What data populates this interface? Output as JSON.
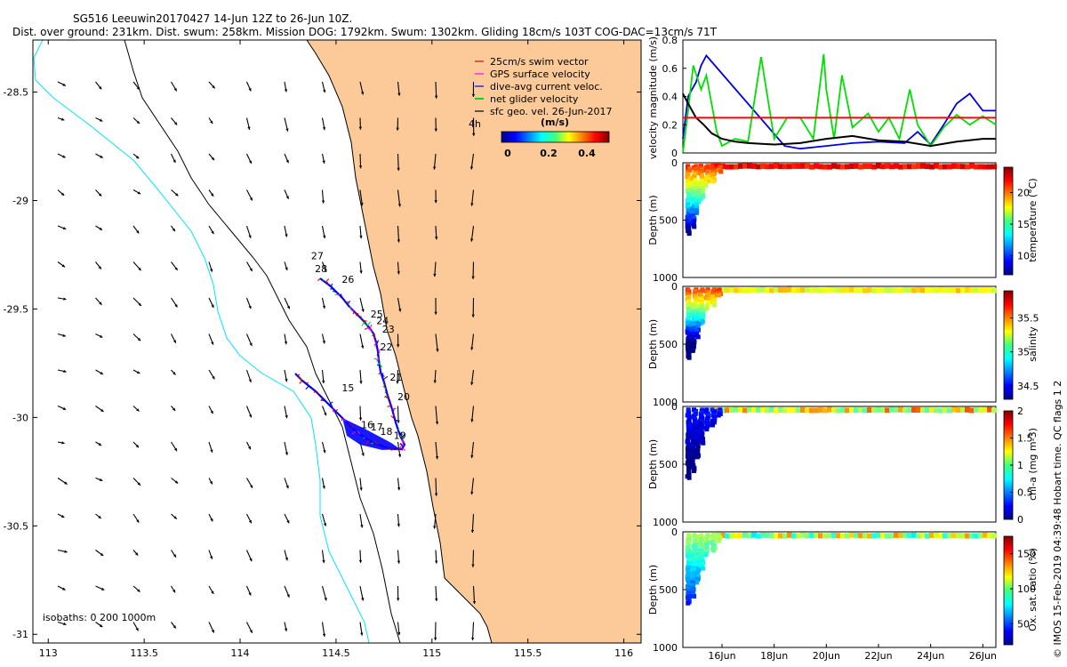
{
  "header": {
    "title_line1": "SG516 Leeuwin20170427 14-Jun 12Z to 26-Jun 10Z.",
    "title_line2": "Dist. over ground: 231km. Dist. swum: 258km. Mission DOG: 1792km. Swum: 1302km. Gliding 18cm/s 103T COG-DAC=13cm/s 71T"
  },
  "credit": "© IMOS 15-Feb-2019 04:39:48 Hobart time. QC flags 1  2",
  "colors": {
    "land": "#fcca98",
    "isobath_200": "#00e5ff",
    "isobath_other": "#000000",
    "swim": "#e00000",
    "gps": "#ff00ff",
    "dac": "#0000ff",
    "net": "#00dd00",
    "geo": "#000000",
    "speed_line": "#0000e0",
    "temp_line": "#00d000",
    "line_black": "#000000",
    "line_red": "#ff0000"
  },
  "chart_data": [
    {
      "type": "scatter",
      "name": "map",
      "xticks": [
        "113",
        "113.5",
        "114",
        "114.5",
        "115",
        "115.5",
        "116"
      ],
      "yticks": [
        "-28.5",
        "-29",
        "-29.5",
        "-30",
        "-30.5",
        "-31"
      ],
      "xlim": [
        112.92,
        116.09
      ],
      "ylim": [
        -31.04,
        -28.26
      ],
      "legend": {
        "entries": [
          "25cm/s swim vector",
          "GPS surface velocity",
          "dive-avg current veloc.",
          "net glider velocity",
          "sfc geo. vel. 26-Jun-2017"
        ],
        "time_label": "4h",
        "colorbar_title": "(m/s)",
        "colorbar_ticks": [
          "0",
          "0.2",
          "0.4"
        ]
      },
      "isobath_label": "isobaths: 0   200  1000m",
      "track_labels": [
        {
          "t": "27",
          "lon": 114.37,
          "lat": -29.27
        },
        {
          "t": "28",
          "lon": 114.39,
          "lat": -29.33
        },
        {
          "t": "26",
          "lon": 114.53,
          "lat": -29.38
        },
        {
          "t": "25",
          "lon": 114.68,
          "lat": -29.54
        },
        {
          "t": "24",
          "lon": 114.71,
          "lat": -29.57
        },
        {
          "t": "23",
          "lon": 114.74,
          "lat": -29.61
        },
        {
          "t": "22",
          "lon": 114.73,
          "lat": -29.69
        },
        {
          "t": "21",
          "lon": 114.78,
          "lat": -29.83
        },
        {
          "t": "20",
          "lon": 114.82,
          "lat": -29.92
        },
        {
          "t": "15",
          "lon": 114.53,
          "lat": -29.88
        },
        {
          "t": "16",
          "lon": 114.63,
          "lat": -30.05
        },
        {
          "t": "17",
          "lon": 114.68,
          "lat": -30.06
        },
        {
          "t": "18",
          "lon": 114.73,
          "lat": -30.08
        },
        {
          "t": "19",
          "lon": 114.8,
          "lat": -30.1
        }
      ]
    },
    {
      "type": "line",
      "name": "velocity",
      "ylabel": "velocity magnitude (m/s)",
      "ylim": [
        0,
        0.8
      ],
      "yticks": [
        "0",
        "0.2",
        "0.4",
        "0.6",
        "0.8"
      ],
      "xlim": [
        14.5,
        26.5
      ],
      "series": [
        {
          "color": "blue",
          "x": [
            14.5,
            14.7,
            15.0,
            15.2,
            15.4,
            18.4,
            19.0,
            20.0,
            21.0,
            22.0,
            23.0,
            23.5,
            24.0,
            24.5,
            25.0,
            25.5,
            26.0,
            26.5
          ],
          "y": [
            0.1,
            0.4,
            0.5,
            0.62,
            0.69,
            0.05,
            0.03,
            0.05,
            0.07,
            0.08,
            0.07,
            0.15,
            0.06,
            0.2,
            0.35,
            0.42,
            0.3,
            0.3
          ]
        },
        {
          "color": "green",
          "x": [
            14.5,
            14.7,
            14.9,
            15.2,
            15.4,
            15.8,
            16.0,
            16.5,
            17.0,
            17.5,
            18.0,
            18.5,
            19.0,
            19.5,
            19.9,
            20.0,
            20.3,
            20.6,
            21.0,
            21.6,
            22.0,
            22.4,
            22.8,
            23.2,
            23.5,
            24.0,
            24.5,
            25.0,
            25.5,
            26.0,
            26.5
          ],
          "y": [
            0.0,
            0.3,
            0.62,
            0.45,
            0.55,
            0.15,
            0.05,
            0.1,
            0.08,
            0.68,
            0.1,
            0.25,
            0.25,
            0.1,
            0.7,
            0.45,
            0.1,
            0.55,
            0.18,
            0.28,
            0.15,
            0.25,
            0.1,
            0.45,
            0.2,
            0.05,
            0.18,
            0.27,
            0.2,
            0.26,
            0.2
          ]
        },
        {
          "color": "black",
          "x": [
            14.5,
            14.7,
            15.0,
            15.3,
            15.6,
            16.0,
            16.5,
            17.0,
            18.0,
            19.0,
            20.0,
            21.0,
            22.0,
            23.0,
            24.0,
            25.0,
            26.0,
            26.5
          ],
          "y": [
            0.42,
            0.35,
            0.25,
            0.2,
            0.14,
            0.1,
            0.08,
            0.07,
            0.06,
            0.07,
            0.1,
            0.12,
            0.09,
            0.08,
            0.05,
            0.08,
            0.1,
            0.1
          ]
        },
        {
          "color": "red",
          "x": [
            14.5,
            26.5
          ],
          "y": [
            0.25,
            0.25
          ]
        }
      ]
    },
    {
      "type": "heatmap",
      "name": "temperature",
      "ylabel": "Depth (m)",
      "clabel": "temperature (°C)",
      "cticks": [
        "10",
        "15",
        "20"
      ],
      "clim": [
        7,
        24
      ],
      "ylim": [
        0,
        1000
      ],
      "yticks": [
        "0",
        "500",
        "1000"
      ]
    },
    {
      "type": "heatmap",
      "name": "salinity",
      "ylabel": "Depth (m)",
      "clabel": "salinity",
      "cticks": [
        "34.5",
        "35",
        "35.5"
      ],
      "clim": [
        34.3,
        35.9
      ],
      "ylim": [
        0,
        1000
      ],
      "yticks": [
        "0",
        "500",
        "1000"
      ]
    },
    {
      "type": "heatmap",
      "name": "chlorophyll",
      "ylabel": "Depth (m)",
      "clabel": "chl-a (mg m-3)",
      "cticks": [
        "0",
        "0.5",
        "1",
        "1.5",
        "2"
      ],
      "clim": [
        0,
        2
      ],
      "ylim": [
        0,
        1000
      ],
      "yticks": [
        "0",
        "500",
        "1000"
      ]
    },
    {
      "type": "heatmap",
      "name": "oxygen",
      "ylabel": "Depth (m)",
      "clabel": "Ox. sat. ratio (%)",
      "cticks": [
        "50",
        "100",
        "150"
      ],
      "clim": [
        20,
        175
      ],
      "ylim": [
        0,
        1000
      ],
      "yticks": [
        "0",
        "500",
        "1000"
      ],
      "xticks": [
        "16Jun",
        "18Jun",
        "20Jun",
        "22Jun",
        "24Jun",
        "26Jun"
      ]
    }
  ]
}
